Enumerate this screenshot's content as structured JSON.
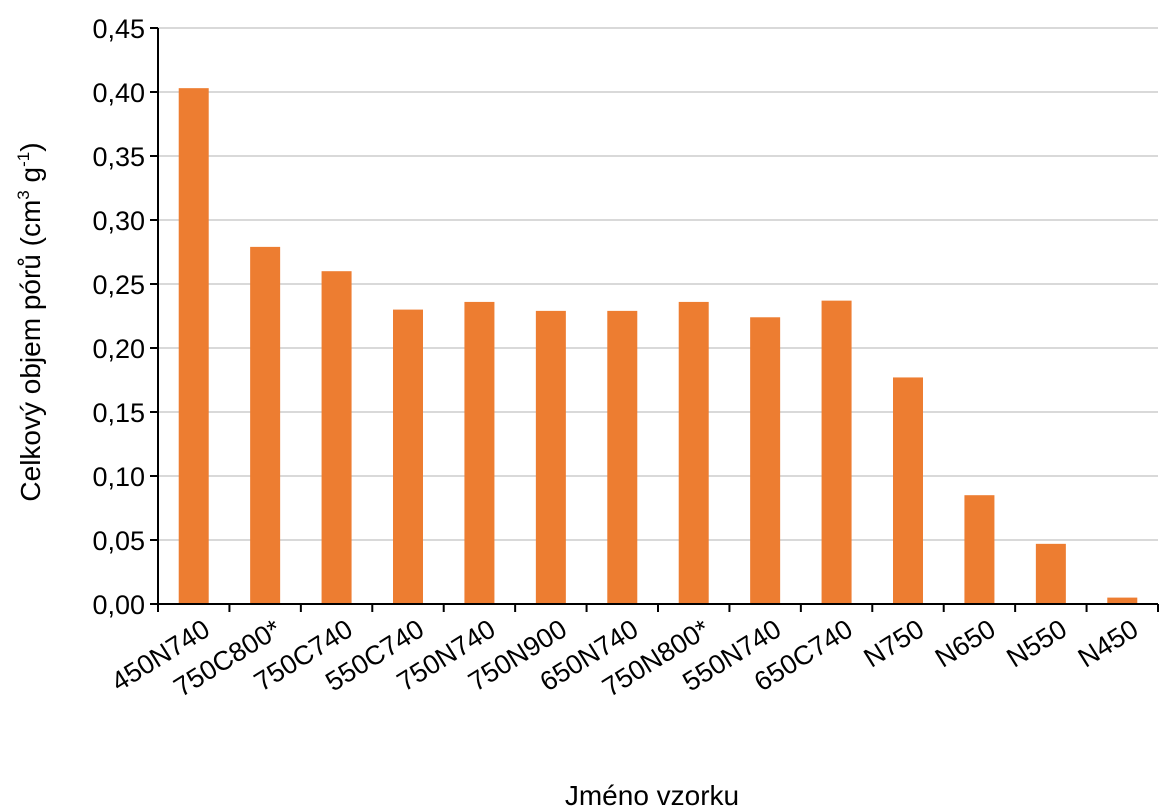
{
  "chart_data": {
    "type": "bar",
    "title": "",
    "xlabel": "Jméno vzorku",
    "ylabel": {
      "main": "Celkový objem pórů (cm",
      "sup1": "3",
      "mid": " g",
      "sup2": "-1",
      "end": ")"
    },
    "ylim": [
      0,
      0.45
    ],
    "yticks": [
      "0,00",
      "0,05",
      "0,10",
      "0,15",
      "0,20",
      "0,25",
      "0,30",
      "0,35",
      "0,40",
      "0,45"
    ],
    "grid": true,
    "categories": [
      "450N740",
      "750C800*",
      "750C740",
      "550C740",
      "750N740",
      "750N900",
      "650N740",
      "750N800*",
      "550N740",
      "650C740",
      "N750",
      "N650",
      "N550",
      "N450"
    ],
    "values": [
      0.403,
      0.279,
      0.26,
      0.23,
      0.236,
      0.229,
      0.229,
      0.236,
      0.224,
      0.237,
      0.177,
      0.085,
      0.047,
      0.005
    ],
    "colors": {
      "bar": "#ED7D31",
      "grid": "#D9D9D9",
      "axis": "#000000"
    }
  }
}
